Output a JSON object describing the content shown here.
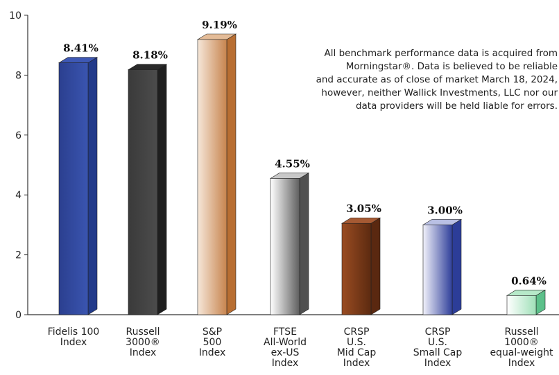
{
  "chart_data": {
    "type": "bar",
    "title": "",
    "xlabel": "",
    "ylabel": "",
    "ylim": [
      0,
      10
    ],
    "yticks": [
      0,
      2,
      4,
      6,
      8,
      10
    ],
    "grid": false,
    "categories": [
      [
        "Fidelis 100",
        "Index"
      ],
      [
        "Russell",
        "3000®",
        "Index"
      ],
      [
        "S&P",
        "500",
        "Index"
      ],
      [
        "FTSE",
        "All-World",
        "ex-US",
        "Index"
      ],
      [
        "CRSP",
        "U.S.",
        "Mid Cap",
        "Index"
      ],
      [
        "CRSP",
        "U.S.",
        "Small Cap",
        "Index"
      ],
      [
        "Russell",
        "1000®",
        "equal-weight",
        "Index"
      ]
    ],
    "values": [
      8.41,
      8.18,
      9.19,
      4.55,
      3.05,
      3.0,
      0.64
    ],
    "value_labels": [
      "8.41%",
      "8.18%",
      "9.19%",
      "4.55%",
      "3.05%",
      "3.00%",
      "0.64%"
    ],
    "colors": [
      {
        "front": [
          "#2b3f8f",
          "#3a55b0"
        ],
        "side": "#223a8a",
        "top": "#3e58b5"
      },
      {
        "front": [
          "#3a3a3a",
          "#4c4c4c"
        ],
        "side": "#1f1f1f",
        "top": "#2a2a2a"
      },
      {
        "front": [
          "#f6e7d9",
          "#c7844e"
        ],
        "side": "#b86e32",
        "top": "#e4bc98"
      },
      {
        "front": [
          "#ffffff",
          "#5e5e5e"
        ],
        "side": "#505050",
        "top": "#c8c8c8"
      },
      {
        "front": [
          "#9a4c22",
          "#5c2a10"
        ],
        "side": "#5a2810",
        "top": "#a65a33"
      },
      {
        "front": [
          "#f2f2fb",
          "#2f3f9a"
        ],
        "side": "#2c3d98",
        "top": "#b9c0e4"
      },
      {
        "front": [
          "#ffffff",
          "#9fe0b8"
        ],
        "side": "#5cc08a",
        "top": "#b6e9c9"
      }
    ]
  },
  "note": {
    "lines": [
      "All benchmark performance data is acquired from",
      "Morningstar®. Data is believed to be reliable",
      "and accurate as of close of market March 18, 2024,",
      "however, neither Wallick Investments, LLC nor our",
      "data providers will be held liable for errors."
    ]
  }
}
